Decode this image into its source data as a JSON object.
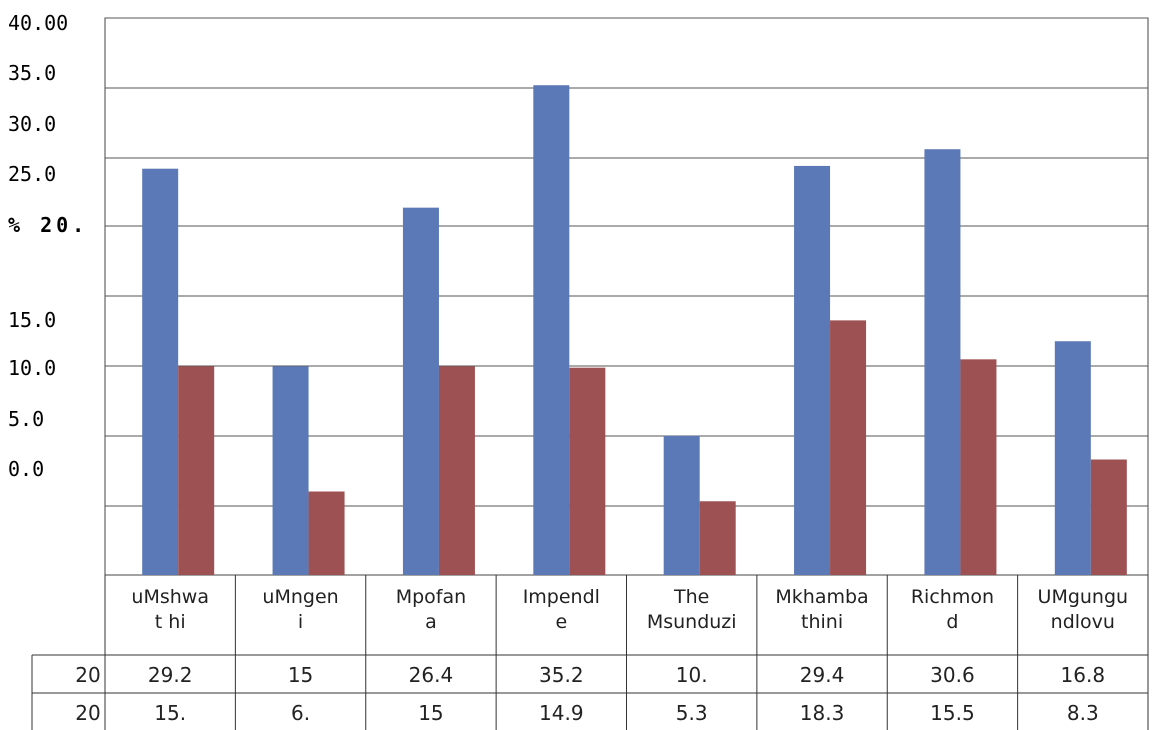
{
  "chart_data": {
    "type": "bar",
    "title": "",
    "xlabel": "",
    "ylabel": "",
    "ylim": [
      0,
      35
    ],
    "grid": true,
    "y_tick_labels": [
      "40.00",
      "35.0",
      "30.0",
      "25.0",
      "% 20.",
      "15.0",
      "10.0",
      "5.0",
      "0.0"
    ],
    "categories": [
      [
        "uMshwa",
        "t hi"
      ],
      [
        "uMngen",
        "i"
      ],
      [
        "Mpofan",
        "a"
      ],
      [
        "Impendl",
        "e"
      ],
      [
        "The",
        "Msunduzi"
      ],
      [
        "Mkhamba",
        "thini"
      ],
      [
        "Richmon",
        "d"
      ],
      [
        "UMgungu",
        "ndlovu"
      ]
    ],
    "series": [
      {
        "name": "20",
        "color": "#5b78b7",
        "values": [
          29.2,
          15,
          26.4,
          35.2,
          10,
          29.4,
          30.6,
          16.8
        ]
      },
      {
        "name": "20",
        "color": "#9e5152",
        "values": [
          15,
          6,
          15,
          14.9,
          5.3,
          18.3,
          15.5,
          8.3
        ]
      }
    ],
    "table_rows": [
      {
        "label": "20",
        "cells": [
          "29.2",
          "15",
          "26.4",
          "35.2",
          "10.",
          "29.4",
          "30.6",
          "16.8"
        ]
      },
      {
        "label": "20",
        "cells": [
          "15.",
          "6.",
          "15",
          "14.9",
          "5.3",
          "18.3",
          "15.5",
          "8.3"
        ]
      }
    ]
  }
}
